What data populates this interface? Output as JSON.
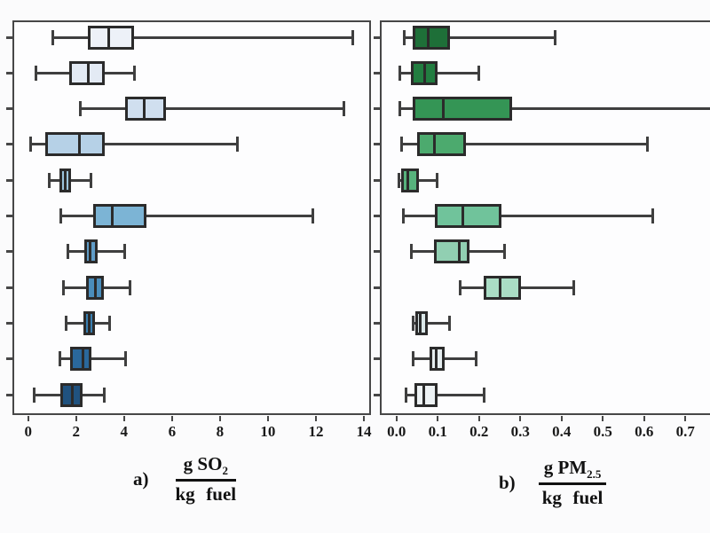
{
  "style": {
    "background": "#fbfbfc",
    "panel_background": "#fdfdfe",
    "panel_border": "#474747",
    "whisker_color": "#3f3f3f",
    "box_border_color": "#2b2b2b",
    "tick_label_color": "#1a1a1a"
  },
  "chart_data": [
    {
      "type": "boxplot",
      "orientation": "horizontal",
      "panel_label": "a)",
      "axis_title": {
        "numerator_main": "g SO",
        "numerator_sub": "2",
        "denominator": "kg fuel"
      },
      "xlim": [
        0,
        14
      ],
      "xtick_values": [
        0,
        2,
        4,
        6,
        8,
        10,
        12,
        14
      ],
      "xtick_labels": [
        "0",
        "2",
        "4",
        "6",
        "8",
        "10",
        "12",
        "14"
      ],
      "grid": false,
      "legend": "none",
      "rows": [
        {
          "whisker_low": 1.0,
          "q1": 2.5,
          "median": 3.35,
          "q3": 4.4,
          "whisker_high": 13.55,
          "cap_high": true,
          "color": "#edf1f8"
        },
        {
          "whisker_low": 0.3,
          "q1": 1.7,
          "median": 2.5,
          "q3": 3.2,
          "whisker_high": 4.45,
          "cap_high": true,
          "color": "#e3eaf4"
        },
        {
          "whisker_low": 2.15,
          "q1": 4.05,
          "median": 4.85,
          "q3": 5.75,
          "whisker_high": 13.2,
          "cap_high": true,
          "color": "#d0dfef"
        },
        {
          "whisker_low": 0.1,
          "q1": 0.7,
          "median": 2.15,
          "q3": 3.2,
          "whisker_high": 8.75,
          "cap_high": true,
          "color": "#b6d1e7"
        },
        {
          "whisker_low": 0.85,
          "q1": 1.3,
          "median": 1.55,
          "q3": 1.8,
          "whisker_high": 2.65,
          "cap_high": true,
          "color": "#9cc4dc"
        },
        {
          "whisker_low": 1.35,
          "q1": 2.7,
          "median": 3.5,
          "q3": 4.95,
          "whisker_high": 11.9,
          "cap_high": true,
          "color": "#7cb4d5"
        },
        {
          "whisker_low": 1.65,
          "q1": 2.35,
          "median": 2.6,
          "q3": 2.9,
          "whisker_high": 4.05,
          "cap_high": true,
          "color": "#5f9cc7"
        },
        {
          "whisker_low": 1.45,
          "q1": 2.4,
          "median": 2.8,
          "q3": 3.15,
          "whisker_high": 4.25,
          "cap_high": true,
          "color": "#4a8dbb"
        },
        {
          "whisker_low": 1.55,
          "q1": 2.3,
          "median": 2.55,
          "q3": 2.8,
          "whisker_high": 3.4,
          "cap_high": true,
          "color": "#3a7fb0"
        },
        {
          "whisker_low": 1.3,
          "q1": 1.75,
          "median": 2.3,
          "q3": 2.65,
          "whisker_high": 4.1,
          "cap_high": true,
          "color": "#2a689c"
        },
        {
          "whisker_low": 0.25,
          "q1": 1.35,
          "median": 1.85,
          "q3": 2.28,
          "whisker_high": 3.2,
          "cap_high": true,
          "color": "#20527f"
        }
      ]
    },
    {
      "type": "boxplot",
      "orientation": "horizontal",
      "panel_label": "b)",
      "axis_title": {
        "numerator_main": "g PM",
        "numerator_sub": "2.5",
        "denominator": "kg fuel"
      },
      "xlim": [
        0,
        0.76
      ],
      "xtick_values": [
        0,
        0.1,
        0.2,
        0.3,
        0.4,
        0.5,
        0.6,
        0.7
      ],
      "xtick_labels": [
        "0.0",
        "0.1",
        "0.2",
        "0.3",
        "0.4",
        "0.5",
        "0.6",
        "0.7"
      ],
      "grid": false,
      "legend": "none",
      "rows": [
        {
          "whisker_low": 0.018,
          "q1": 0.04,
          "median": 0.076,
          "q3": 0.13,
          "whisker_high": 0.385,
          "cap_high": true,
          "color": "#1e6f38"
        },
        {
          "whisker_low": 0.008,
          "q1": 0.036,
          "median": 0.068,
          "q3": 0.1,
          "whisker_high": 0.2,
          "cap_high": true,
          "color": "#227d40"
        },
        {
          "whisker_low": 0.008,
          "q1": 0.04,
          "median": 0.113,
          "q3": 0.28,
          "whisker_high": 0.8,
          "cap_high": false,
          "color": "#349555"
        },
        {
          "whisker_low": 0.011,
          "q1": 0.05,
          "median": 0.093,
          "q3": 0.168,
          "whisker_high": 0.61,
          "cap_high": true,
          "color": "#4caa6e"
        },
        {
          "whisker_low": 0.004,
          "q1": 0.011,
          "median": 0.027,
          "q3": 0.054,
          "whisker_high": 0.1,
          "cap_high": true,
          "color": "#57b27c"
        },
        {
          "whisker_low": 0.015,
          "q1": 0.093,
          "median": 0.161,
          "q3": 0.254,
          "whisker_high": 0.623,
          "cap_high": true,
          "color": "#70c39b"
        },
        {
          "whisker_low": 0.035,
          "q1": 0.092,
          "median": 0.153,
          "q3": 0.176,
          "whisker_high": 0.264,
          "cap_high": true,
          "color": "#91cfb2"
        },
        {
          "whisker_low": 0.154,
          "q1": 0.211,
          "median": 0.251,
          "q3": 0.301,
          "whisker_high": 0.43,
          "cap_high": true,
          "color": "#aaddc5"
        },
        {
          "whisker_low": 0.039,
          "q1": 0.045,
          "median": 0.057,
          "q3": 0.075,
          "whisker_high": 0.129,
          "cap_high": true,
          "color": "#dbe8e9"
        },
        {
          "whisker_low": 0.039,
          "q1": 0.081,
          "median": 0.097,
          "q3": 0.116,
          "whisker_high": 0.194,
          "cap_high": true,
          "color": "#e6eef0"
        },
        {
          "whisker_low": 0.022,
          "q1": 0.043,
          "median": 0.066,
          "q3": 0.1,
          "whisker_high": 0.214,
          "cap_high": true,
          "color": "#eef3f5"
        }
      ]
    }
  ]
}
